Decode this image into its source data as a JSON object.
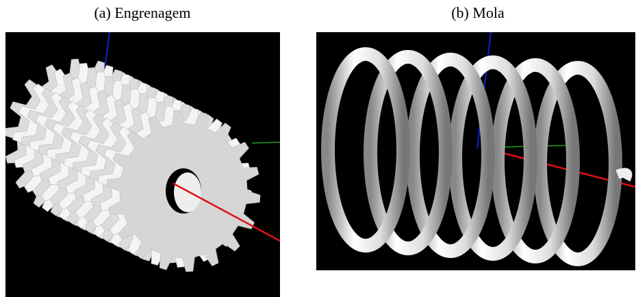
{
  "figures": [
    {
      "caption": "(a) Engrenagem"
    },
    {
      "caption": "(b) Mola"
    }
  ]
}
